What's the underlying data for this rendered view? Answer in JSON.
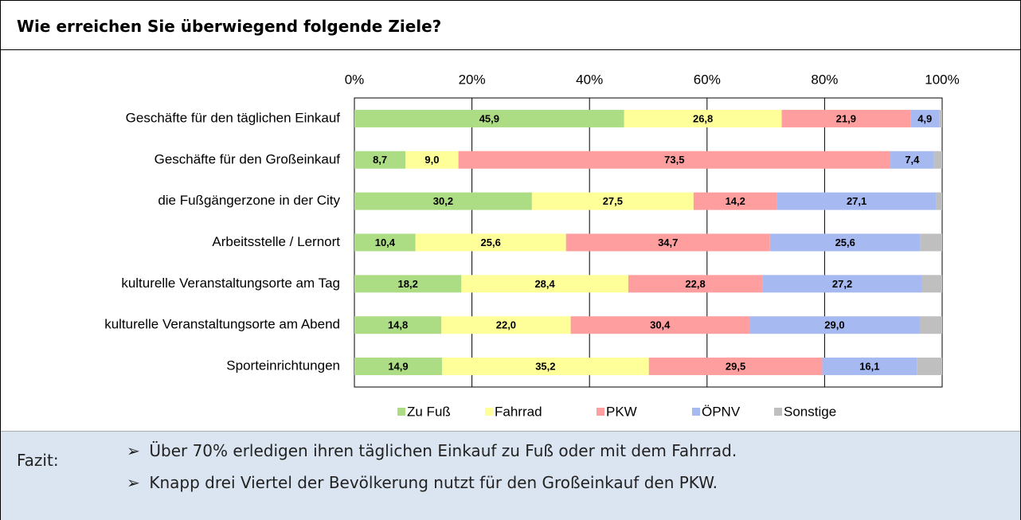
{
  "header": {
    "title": "Wie erreichen Sie überwiegend folgende Ziele?"
  },
  "chart_data": {
    "type": "stacked_bar_horizontal",
    "categories": [
      "Geschäfte für den täglichen Einkauf",
      "Geschäfte für den Großeinkauf",
      "die Fußgängerzone in der City",
      "Arbeitsstelle / Lernort",
      "kulturelle Veranstaltungsorte am Tag",
      "kulturelle Veranstaltungsorte am Abend",
      "Sporteinrichtungen"
    ],
    "series": [
      {
        "name": "Zu Fuß",
        "color": "#acdc84",
        "values": [
          45.9,
          8.7,
          30.2,
          10.4,
          18.2,
          14.8,
          14.9
        ],
        "value_labels": [
          "45,9",
          "8,7",
          "30,2",
          "10,4",
          "18,2",
          "14,8",
          "14,9"
        ]
      },
      {
        "name": "Fahrrad",
        "color": "#ffff99",
        "values": [
          26.8,
          9.0,
          27.5,
          25.6,
          28.4,
          22.0,
          35.2
        ],
        "value_labels": [
          "26,8",
          "9,0",
          "27,5",
          "25,6",
          "28,4",
          "22,0",
          "35,2"
        ]
      },
      {
        "name": "PKW",
        "color": "#ff9e9e",
        "values": [
          21.9,
          73.5,
          14.2,
          34.7,
          22.8,
          30.4,
          29.5
        ],
        "value_labels": [
          "21,9",
          "73,5",
          "14,2",
          "34,7",
          "22,8",
          "30,4",
          "29,5"
        ]
      },
      {
        "name": "ÖPNV",
        "color": "#a6b9f0",
        "values": [
          4.9,
          7.4,
          27.1,
          25.6,
          27.2,
          29.0,
          16.1
        ],
        "value_labels": [
          "4,9",
          "7,4",
          "27,1",
          "25,6",
          "27,2",
          "29,0",
          "16,1"
        ]
      },
      {
        "name": "Sonstige",
        "color": "#bfbfbf",
        "values": [
          0.5,
          1.4,
          1.0,
          3.7,
          3.4,
          3.8,
          4.3
        ]
      }
    ],
    "xlim": [
      0,
      100
    ],
    "xticks": [
      {
        "value": 0,
        "label": "0%"
      },
      {
        "value": 20,
        "label": "20%"
      },
      {
        "value": 40,
        "label": "40%"
      },
      {
        "value": 60,
        "label": "60%"
      },
      {
        "value": 80,
        "label": "80%"
      },
      {
        "value": 100,
        "label": "100%"
      }
    ],
    "grid": true,
    "legend": "bottom"
  },
  "fazit": {
    "label": "Fazit:",
    "items": [
      "Über 70% erledigen ihren täglichen Einkauf zu Fuß oder mit dem Fahrrad.",
      "Knapp drei Viertel der Bevölkerung nutzt für den Großeinkauf den PKW."
    ]
  }
}
